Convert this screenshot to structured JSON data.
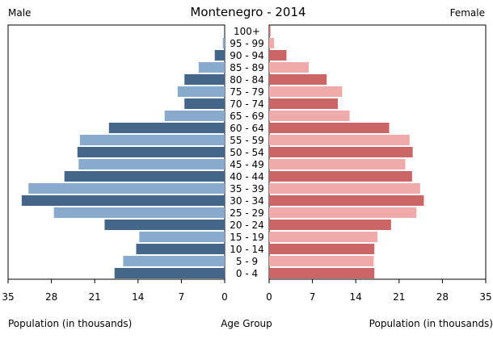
{
  "chart_data": {
    "type": "bar",
    "subtype": "population-pyramid",
    "title": "Montenegro - 2014",
    "left_label": "Male",
    "right_label": "Female",
    "xlabel_left": "Population (in thousands)",
    "xlabel_center": "Age Group",
    "xlabel_right": "Population (in thousands)",
    "xlim": [
      0,
      35
    ],
    "x_ticks": [
      35,
      28,
      21,
      14,
      7,
      0
    ],
    "x_ticks_right": [
      0,
      7,
      14,
      21,
      28,
      35
    ],
    "categories": [
      "0 - 4",
      "5 - 9",
      "10 - 14",
      "15 - 19",
      "20 - 24",
      "25 - 29",
      "30 - 34",
      "35 - 39",
      "40 - 44",
      "45 - 49",
      "50 - 54",
      "55 - 59",
      "60 - 64",
      "65 - 69",
      "70 - 74",
      "75 - 79",
      "80 - 84",
      "85 - 89",
      "90 - 94",
      "95 - 99",
      "100+"
    ],
    "series": [
      {
        "name": "Male",
        "values": [
          17.8,
          16.4,
          14.3,
          13.8,
          19.4,
          27.6,
          32.8,
          31.7,
          25.9,
          23.6,
          23.8,
          23.4,
          18.7,
          9.7,
          6.5,
          7.6,
          6.5,
          4.2,
          1.6,
          0.3,
          0.1
        ]
      },
      {
        "name": "Female",
        "values": [
          17.0,
          16.9,
          17.0,
          17.5,
          19.7,
          23.8,
          25.0,
          24.4,
          23.1,
          22.0,
          23.2,
          22.7,
          19.4,
          13.0,
          11.1,
          11.8,
          9.3,
          6.4,
          2.8,
          0.8,
          0.2
        ]
      }
    ],
    "colors": {
      "male_dark": "#446688",
      "male_light": "#88aacc",
      "female_dark": "#cc6666",
      "female_light": "#f0aaaa"
    },
    "grid": false
  }
}
